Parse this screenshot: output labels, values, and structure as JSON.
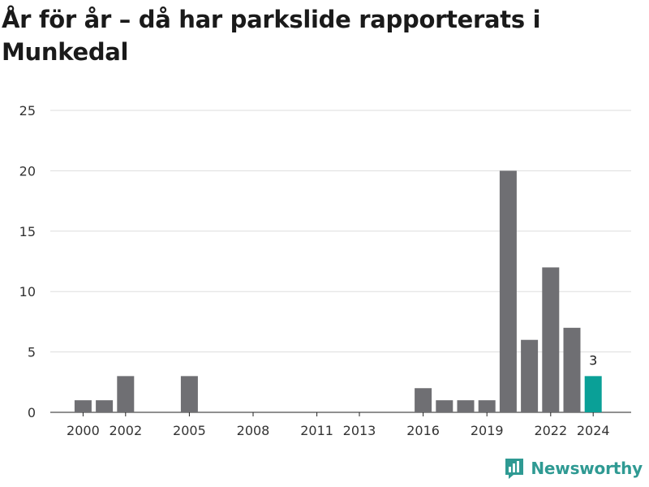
{
  "chart_data": {
    "type": "bar",
    "title": "År för år – då har parkslide rapporterats i Munkedal",
    "x": [
      2000,
      2001,
      2002,
      2005,
      2016,
      2017,
      2018,
      2019,
      2020,
      2021,
      2022,
      2023,
      2024
    ],
    "values": [
      1,
      1,
      3,
      3,
      2,
      1,
      1,
      1,
      20,
      6,
      12,
      7,
      3
    ],
    "x_ticks": [
      "2000",
      "2002",
      "2005",
      "2008",
      "2011",
      "2013",
      "2016",
      "2019",
      "2022",
      "2024"
    ],
    "y_ticks": [
      "0",
      "5",
      "10",
      "15",
      "20",
      "25"
    ],
    "xlim": [
      1999,
      2025
    ],
    "ylim": [
      0,
      25
    ],
    "grid": true,
    "highlight": {
      "x": 2024,
      "label": "3"
    },
    "colors": {
      "bar": "#6f6f73",
      "highlight": "#0aa097",
      "grid": "#dddddd"
    }
  },
  "brand": {
    "name": "Newsworthy",
    "icon": "newsworthy-logo-icon",
    "color": "#2f9a93"
  }
}
